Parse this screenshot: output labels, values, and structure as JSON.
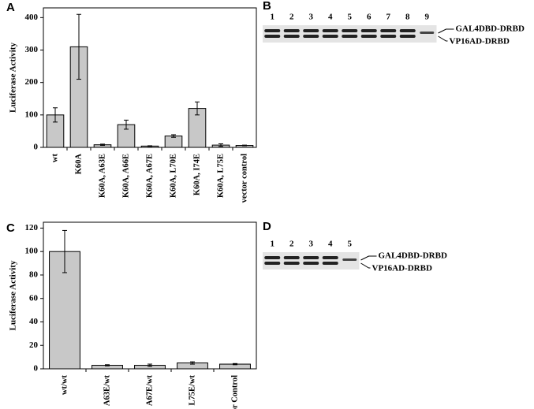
{
  "chart_data": [
    {
      "type": "bar",
      "panel": "A",
      "ylabel": "Luciferase Activity",
      "categories": [
        "wt",
        "K60A",
        "K60A, A63E",
        "K60A, A66E",
        "K60A, A67E",
        "K60A, L70E",
        "K60A, I74E",
        "K60A, L75E",
        "vector control"
      ],
      "values": [
        100,
        310,
        8,
        70,
        4,
        35,
        120,
        7,
        6
      ],
      "errors": [
        22,
        100,
        2,
        14,
        1,
        4,
        20,
        4,
        1
      ],
      "color": "#c8c8c8",
      "ylim": [
        0,
        430
      ],
      "yticks": [
        0,
        100,
        200,
        300,
        400
      ]
    },
    {
      "type": "bar",
      "panel": "C",
      "ylabel": "Luciferase Activity",
      "categories": [
        "wt/wt",
        "A63E/wt",
        "A67E/wt",
        "L75E/wt",
        "Vector Control"
      ],
      "values": [
        100,
        3,
        3,
        5,
        4
      ],
      "errors": [
        18,
        0.5,
        1,
        1,
        0.5
      ],
      "color": "#c8c8c8",
      "ylim": [
        0,
        125
      ],
      "yticks": [
        0,
        20,
        40,
        60,
        80,
        100,
        120
      ]
    }
  ],
  "gels": [
    {
      "panel": "B",
      "lanes": [
        "1",
        "2",
        "3",
        "4",
        "5",
        "6",
        "7",
        "8",
        "9"
      ],
      "bands": [
        "GAL4DBD-DRBD",
        "VP16AD-DRBD"
      ]
    },
    {
      "panel": "D",
      "lanes": [
        "1",
        "2",
        "3",
        "4",
        "5"
      ],
      "bands": [
        "GAL4DBD-DRBD",
        "VP16AD-DRBD"
      ]
    }
  ]
}
